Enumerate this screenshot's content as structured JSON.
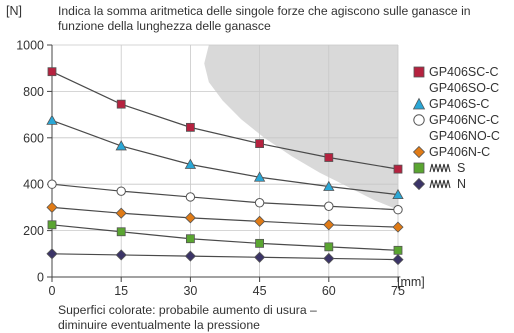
{
  "chart_data": {
    "type": "line",
    "title": "Indica la somma aritmetica delle singole forze che agiscono sulle ganasce in funzione della lunghezza delle ganasce",
    "ylabel": "[N]",
    "xlabel": "[mm]",
    "note": "Superfici colorate: probabile aumento di usura – diminuire eventualmente la pressione",
    "x": [
      0,
      15,
      30,
      45,
      60,
      75
    ],
    "x_ticks": [
      "0",
      "15",
      "30",
      "45",
      "60",
      "75"
    ],
    "y_ticks": [
      "0",
      "200",
      "400",
      "600",
      "800",
      "1000"
    ],
    "xlim": [
      0,
      75
    ],
    "ylim": [
      0,
      1000
    ],
    "grid": true,
    "legend_position": "right",
    "shaded_region": {
      "color": "#d9d9d9",
      "left_edge": [
        [
          34,
          1000
        ],
        [
          33,
          920
        ],
        [
          34,
          840
        ],
        [
          37,
          760
        ],
        [
          41,
          680
        ],
        [
          46,
          600
        ],
        [
          52,
          520
        ],
        [
          58,
          450
        ],
        [
          64,
          390
        ],
        [
          70,
          330
        ],
        [
          75,
          290
        ]
      ]
    },
    "series": [
      {
        "name": "GP406SC-C\nGP406SO-C",
        "marker": "square",
        "color": "#b5223f",
        "values": [
          885,
          745,
          645,
          575,
          515,
          465
        ]
      },
      {
        "name": "GP406S-C",
        "marker": "triangle",
        "color": "#2aa7d6",
        "values": [
          675,
          565,
          485,
          430,
          390,
          355
        ]
      },
      {
        "name": "GP406NC-C\nGP406NO-C",
        "marker": "circle",
        "color": "#d0d0d0",
        "values": [
          400,
          370,
          345,
          320,
          305,
          290
        ]
      },
      {
        "name": "GP406N-C",
        "marker": "diamond",
        "color": "#e07b16",
        "values": [
          300,
          275,
          255,
          240,
          225,
          215
        ]
      },
      {
        "name": "S",
        "marker": "square",
        "color": "#5aa531",
        "values": [
          225,
          195,
          165,
          145,
          130,
          115
        ]
      },
      {
        "name": "N",
        "marker": "diamond",
        "color": "#3b3467",
        "values": [
          100,
          95,
          90,
          85,
          80,
          75
        ]
      }
    ]
  }
}
